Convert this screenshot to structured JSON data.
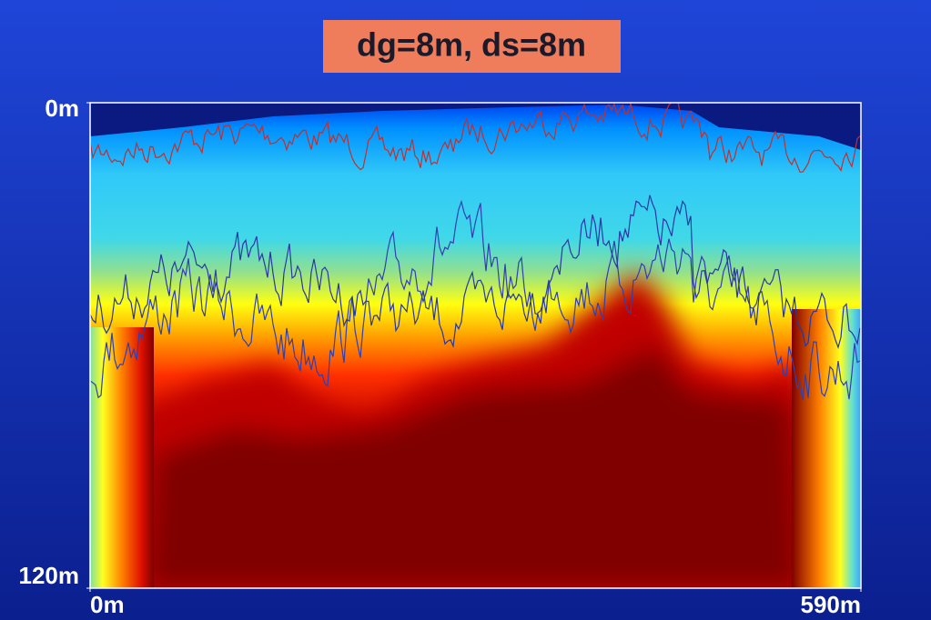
{
  "chart_data": {
    "type": "heatmap",
    "title": "dg=8m, ds=8m",
    "xlim": [
      0,
      590
    ],
    "xticks": [
      {
        "value": 0,
        "label": "0m"
      },
      {
        "value": 590,
        "label": "590m"
      }
    ],
    "ylim": [
      120,
      0
    ],
    "yticks": [
      {
        "value": 0,
        "label": "0m"
      },
      {
        "value": 120,
        "label": "120m"
      }
    ]
  }
}
